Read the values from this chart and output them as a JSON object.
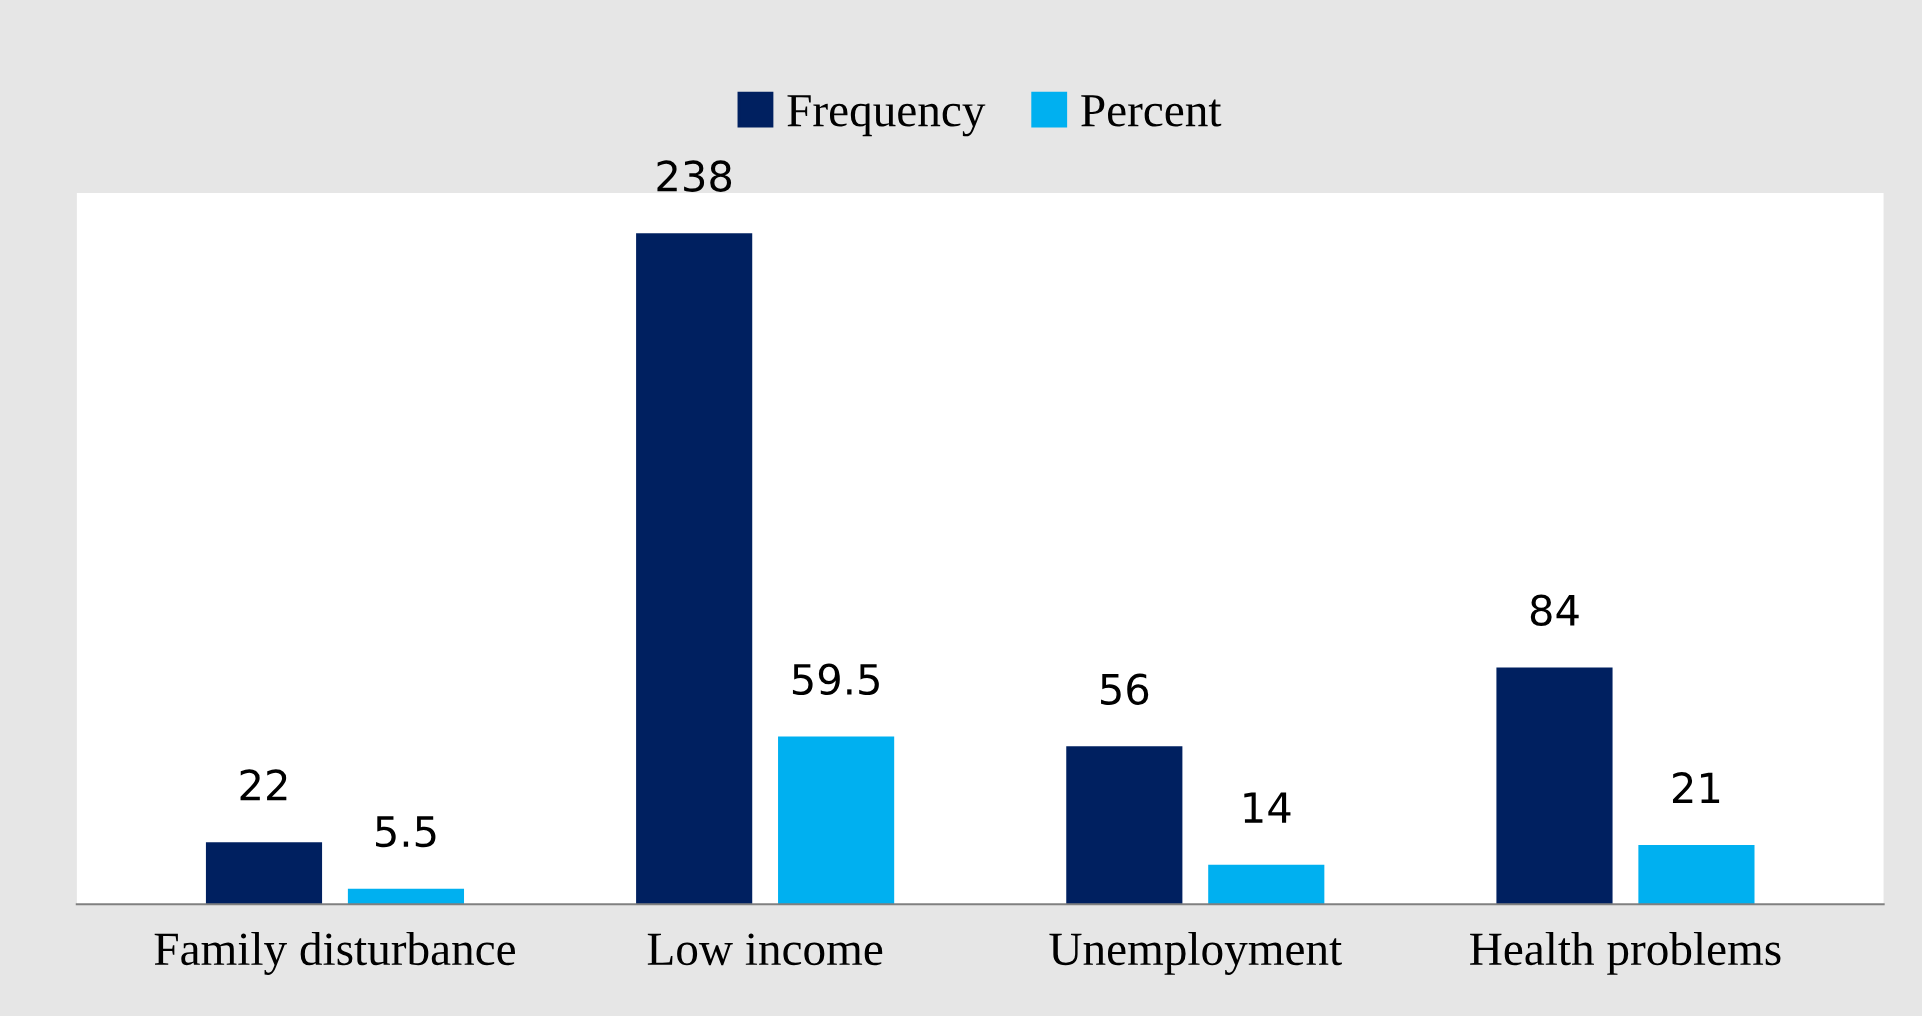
{
  "chart_data": {
    "type": "bar",
    "categories": [
      "Family disturbance",
      "Low income",
      "Unemployment",
      "Health problems"
    ],
    "series": [
      {
        "name": "Frequency",
        "color": "#002060",
        "values": [
          22,
          238,
          56,
          84
        ]
      },
      {
        "name": "Percent",
        "color": "#00b0f0",
        "values": [
          5.5,
          59.5,
          14,
          21
        ]
      }
    ],
    "data_labels": true,
    "legend": "top",
    "tick_labels": "x",
    "grid": false
  }
}
